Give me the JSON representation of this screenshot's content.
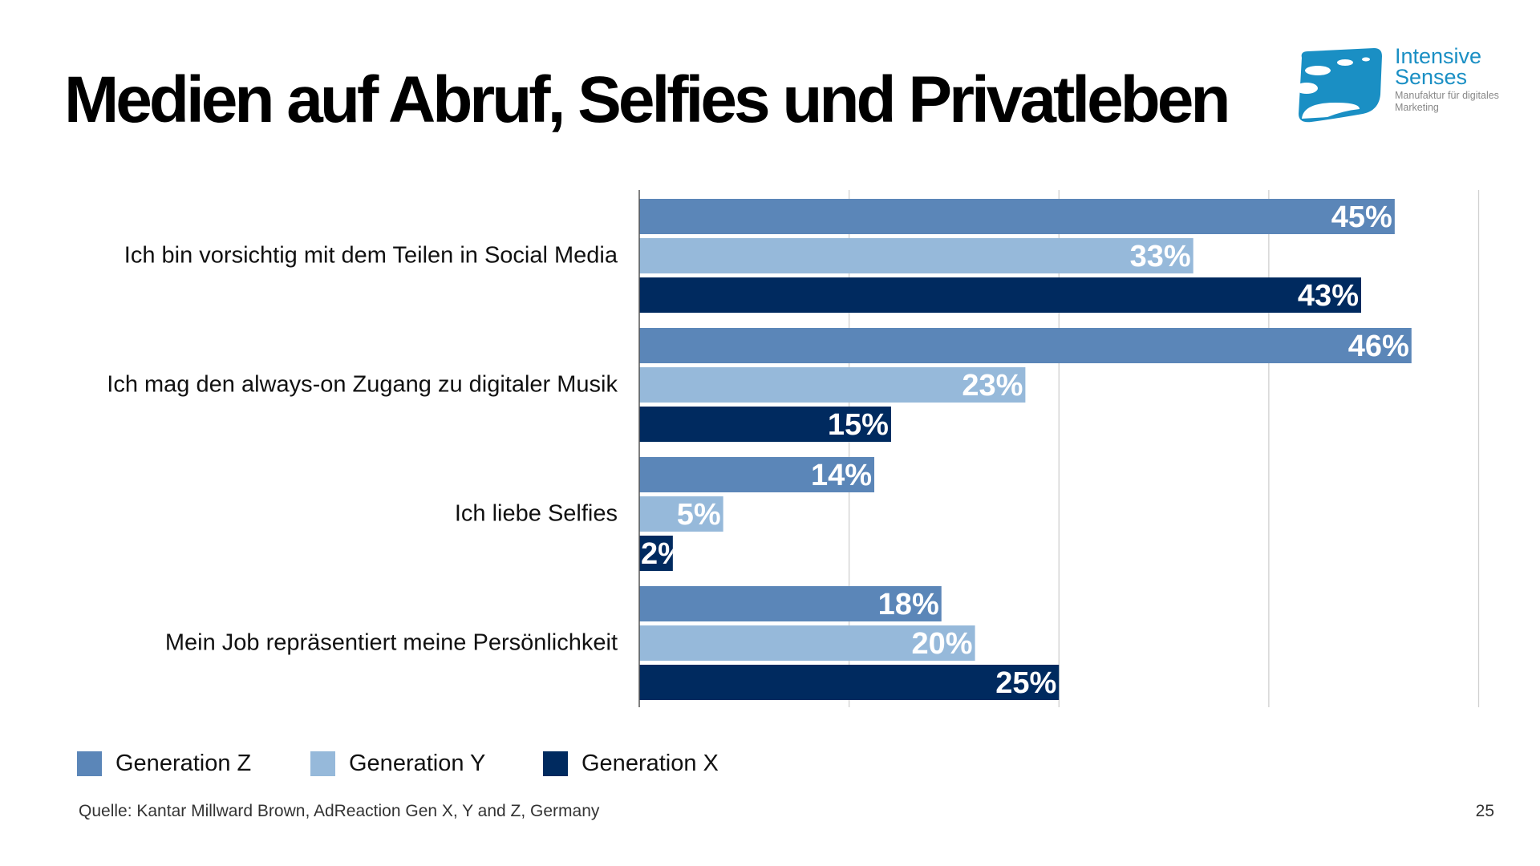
{
  "title": "Medien auf Abruf, Selfies und Privatleben",
  "logo": {
    "line1": "Intensive",
    "line2": "Senses",
    "tagline": "Manufaktur für digitales Marketing"
  },
  "source": "Quelle: Kantar Millward Brown, AdReaction Gen X, Y and Z, Germany",
  "page_number": "25",
  "chart_data": {
    "type": "bar",
    "orientation": "horizontal",
    "categories": [
      "Ich bin vorsichtig mit dem Teilen in Social Media",
      "Ich mag den always-on Zugang zu digitaler Musik",
      "Ich liebe Selfies",
      "Mein Job repräsentiert meine Persönlichkeit"
    ],
    "series": [
      {
        "name": "Generation Z",
        "color": "#5b86b8",
        "values": [
          45,
          46,
          14,
          18
        ]
      },
      {
        "name": "Generation Y",
        "color": "#96b9da",
        "values": [
          33,
          23,
          5,
          20
        ]
      },
      {
        "name": "Generation X",
        "color": "#002a5f",
        "values": [
          43,
          15,
          2,
          25
        ]
      }
    ],
    "value_suffix": "%",
    "xlim": [
      0,
      50
    ],
    "grid_step": 12.5,
    "grid": true,
    "legend_position": "bottom-left",
    "data_labels": true
  }
}
